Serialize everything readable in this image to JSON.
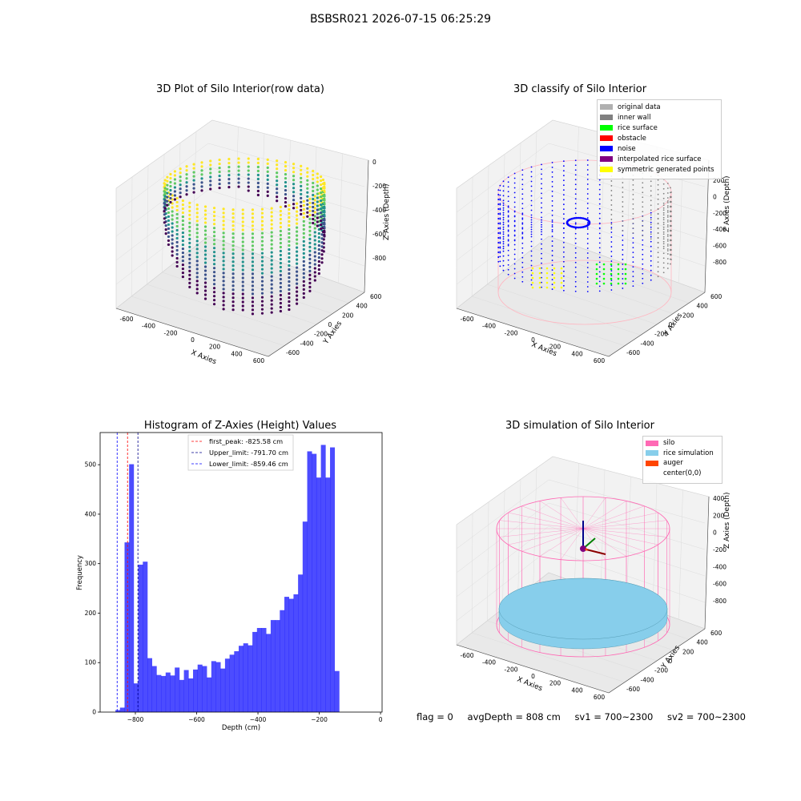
{
  "suptitle": "BSBSR021 2026-07-15 06:25:29",
  "raw3d": {
    "title": "3D Plot of Silo Interior(row data)",
    "xlabel": "X Axies",
    "ylabel": "Y Axies",
    "zlabel": "Z Axies (Depth)",
    "xticks": [
      "-600",
      "-400",
      "-200",
      "0",
      "200",
      "400",
      "600"
    ],
    "yticks": [
      "600",
      "400",
      "200",
      "0",
      "-200",
      "-400",
      "-600"
    ],
    "zticks": [
      "0",
      "-200",
      "-400",
      "-600",
      "-800"
    ]
  },
  "classify3d": {
    "title": "3D classify of Silo Interior",
    "xlabel": "X Axies",
    "ylabel": "Y Axies",
    "zlabel": "Z Axies (Depth)",
    "xticks": [
      "-600",
      "-400",
      "-200",
      "0",
      "200",
      "400",
      "600"
    ],
    "yticks": [
      "600",
      "400",
      "200",
      "0",
      "-200",
      "-400",
      "-600"
    ],
    "zticks": [
      "200",
      "0",
      "-200",
      "-400",
      "-600",
      "-800"
    ],
    "legend": [
      {
        "label": "original data",
        "color": "#b0b0b0"
      },
      {
        "label": "inner wall",
        "color": "#808080"
      },
      {
        "label": "rice surface",
        "color": "#00ff00"
      },
      {
        "label": "obstacle",
        "color": "#ff0000"
      },
      {
        "label": "noise",
        "color": "#0000ff"
      },
      {
        "label": "interpolated rice surface",
        "color": "#800080"
      },
      {
        "label": "symmetric generated points",
        "color": "#ffff00"
      }
    ]
  },
  "sim3d": {
    "title": "3D simulation of Silo Interior",
    "xlabel": "X Axies",
    "ylabel": "Y Axies",
    "zlabel": "Z Axies (Depth)",
    "xticks": [
      "-600",
      "-400",
      "-200",
      "0",
      "200",
      "400",
      "600"
    ],
    "yticks": [
      "600",
      "400",
      "200",
      "0",
      "-200",
      "-400",
      "-600"
    ],
    "zticks": [
      "400",
      "200",
      "0",
      "-200",
      "-400",
      "-600",
      "-800"
    ],
    "legend": [
      {
        "label": "silo",
        "color": "#ff69b4"
      },
      {
        "label": "rice simulation",
        "color": "#87ceeb"
      },
      {
        "label": "auger",
        "color": "#ff4500"
      },
      {
        "label": "center(0,0)",
        "color": ""
      }
    ]
  },
  "footer": {
    "flag": "flag = 0",
    "avg": "avgDepth = 808 cm",
    "sv1": "sv1 = 700~2300",
    "sv2": "sv2 = 700~2300"
  },
  "chart_data": [
    {
      "type": "bar",
      "title": "Histogram of Z-Axies (Height) Values",
      "xlabel": "Depth (cm)",
      "ylabel": "Frequency",
      "xlim": [
        -915,
        5
      ],
      "ylim": [
        0,
        565
      ],
      "xticks": [
        -800,
        -600,
        -400,
        -200,
        0
      ],
      "yticks": [
        0,
        100,
        200,
        300,
        400,
        500
      ],
      "bin_start": -880,
      "bin_width": 14.9,
      "values": [
        0,
        4,
        9,
        343,
        501,
        58,
        298,
        304,
        109,
        93,
        75,
        73,
        80,
        74,
        90,
        65,
        85,
        68,
        86,
        96,
        93,
        70,
        103,
        101,
        88,
        108,
        116,
        123,
        134,
        139,
        135,
        162,
        170,
        170,
        158,
        186,
        186,
        206,
        233,
        229,
        238,
        278,
        385,
        527,
        522,
        474,
        540,
        474,
        535,
        83
      ],
      "color": "#0000ff",
      "vlines": [
        {
          "x": -825.58,
          "label": "first_peak: -825.58 cm",
          "color": "#ff0000"
        },
        {
          "x": -791.7,
          "label": "Upper_limit: -791.70 cm",
          "color": "#00008b"
        },
        {
          "x": -859.46,
          "label": "Lower_limit: -859.46 cm",
          "color": "#0000ff"
        }
      ],
      "legend_position": "top-center"
    }
  ]
}
